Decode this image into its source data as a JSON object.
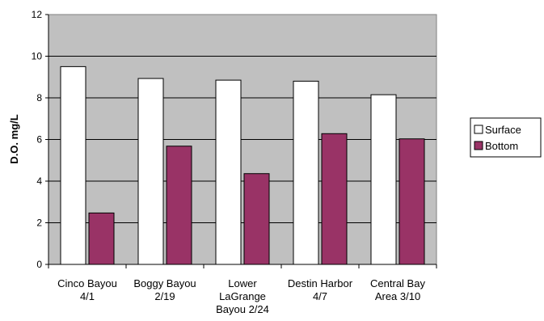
{
  "chart_data": {
    "type": "bar",
    "title": "",
    "xlabel": "",
    "ylabel": "D.O. mg/L",
    "ylim": [
      0,
      12
    ],
    "yticks": [
      0,
      2,
      4,
      6,
      8,
      10,
      12
    ],
    "grid": true,
    "legend_position": "right",
    "categories": [
      [
        "Cinco Bayou",
        "4/1"
      ],
      [
        "Boggy Bayou",
        "2/19"
      ],
      [
        "Lower",
        "LaGrange",
        "Bayou 2/24"
      ],
      [
        "Destin Harbor",
        "4/7"
      ],
      [
        "Central Bay",
        "Area 3/10"
      ]
    ],
    "series": [
      {
        "name": "Surface",
        "color": "#ffffff",
        "values": [
          9.5,
          8.93,
          8.85,
          8.8,
          8.15
        ]
      },
      {
        "name": "Bottom",
        "color": "#993366",
        "values": [
          2.47,
          5.68,
          4.36,
          6.28,
          6.03
        ]
      }
    ],
    "plot_background": "#c0c0c0"
  }
}
